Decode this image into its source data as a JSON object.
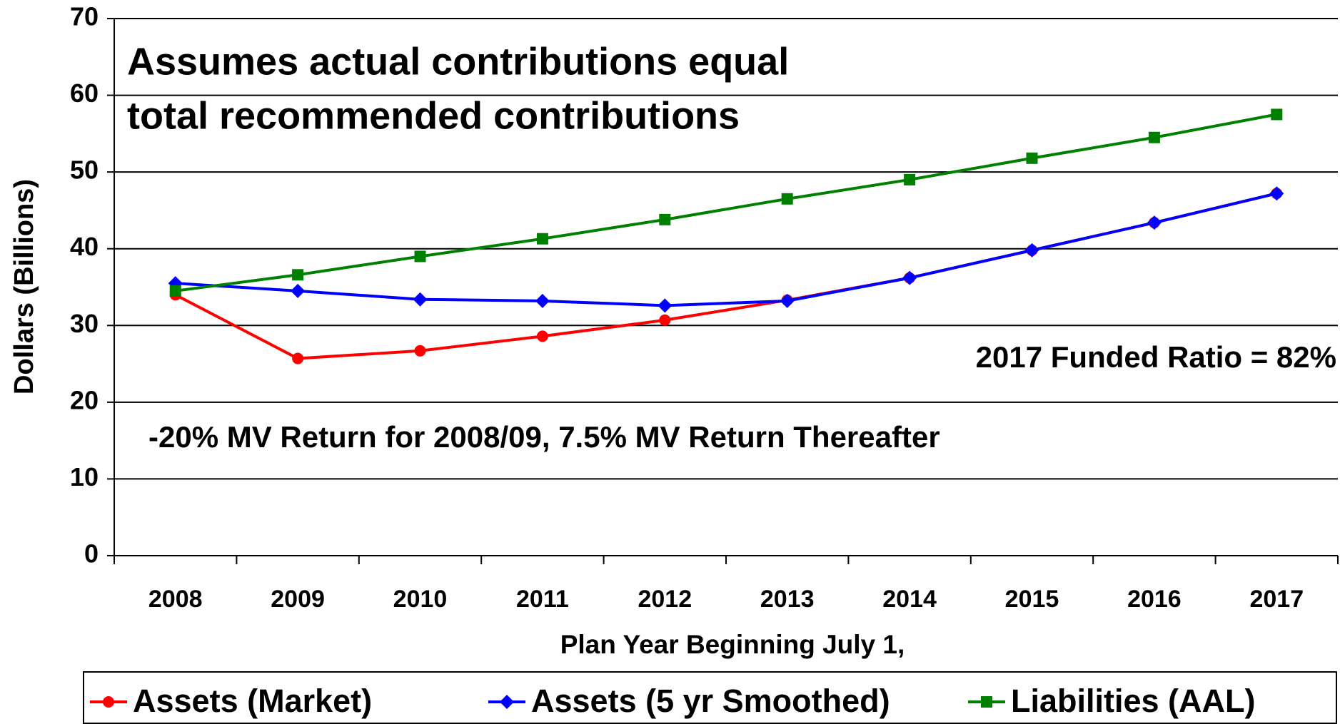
{
  "chart_data": {
    "type": "line",
    "x_label": "Plan Year Beginning July 1,",
    "y_label": "Dollars (Billions)",
    "note_lines": [
      "Assumes actual contributions equal",
      "total recommended contributions"
    ],
    "annotations": [
      "2017 Funded Ratio = 82%",
      "-20% MV Return for 2008/09, 7.5% MV Return Thereafter"
    ],
    "categories": [
      "2008",
      "2009",
      "2010",
      "2011",
      "2012",
      "2013",
      "2014",
      "2015",
      "2016",
      "2017"
    ],
    "series": [
      {
        "name": "Assets (Market)",
        "color": "#ff0000",
        "marker": "circle",
        "values": [
          34.0,
          25.7,
          26.7,
          28.6,
          30.7,
          33.3,
          36.2,
          39.8,
          43.4,
          47.2
        ]
      },
      {
        "name": "Assets (5 yr Smoothed)",
        "color": "#0000ff",
        "marker": "diamond",
        "values": [
          35.5,
          34.5,
          33.4,
          33.2,
          32.6,
          33.2,
          36.2,
          39.8,
          43.4,
          47.2
        ]
      },
      {
        "name": "Liabilities (AAL)",
        "color": "#008000",
        "marker": "square",
        "values": [
          34.5,
          36.6,
          39.0,
          41.3,
          43.8,
          46.5,
          49.0,
          51.8,
          54.5,
          57.5
        ]
      }
    ],
    "ylim": [
      0,
      70
    ],
    "yticks": [
      0,
      10,
      20,
      30,
      40,
      50,
      60,
      70
    ],
    "grid": true,
    "legend": "bottom"
  }
}
